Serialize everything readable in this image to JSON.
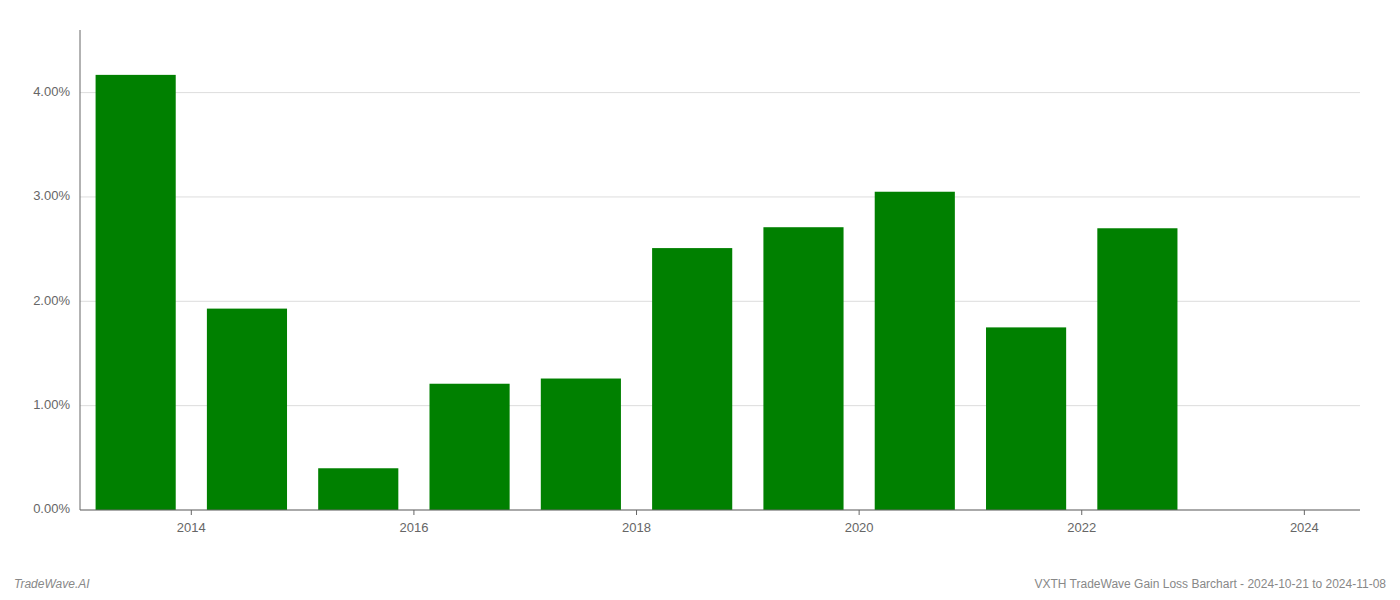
{
  "chart_data": {
    "type": "bar",
    "x": [
      2013.5,
      2014.5,
      2015.5,
      2016.5,
      2017.5,
      2018.5,
      2019.5,
      2020.5,
      2021.5,
      2022.5
    ],
    "values": [
      0.0417,
      0.0193,
      0.004,
      0.0121,
      0.0126,
      0.0251,
      0.0271,
      0.0305,
      0.0175,
      0.027
    ],
    "color": "#008000",
    "ylim": [
      0,
      0.046
    ],
    "yticks": [
      {
        "value": 0.0,
        "label": "0.00%"
      },
      {
        "value": 0.01,
        "label": "1.00%"
      },
      {
        "value": 0.02,
        "label": "2.00%"
      },
      {
        "value": 0.03,
        "label": "3.00%"
      },
      {
        "value": 0.04,
        "label": "4.00%"
      }
    ],
    "xlim": [
      2013.0,
      2024.5
    ],
    "xticks": [
      2014,
      2016,
      2018,
      2020,
      2022,
      2024
    ],
    "grid": true,
    "annotations": [
      "TradeWave.AI",
      "VXTH TradeWave Gain Loss Barchart - 2024-10-21 to 2024-11-08"
    ]
  }
}
